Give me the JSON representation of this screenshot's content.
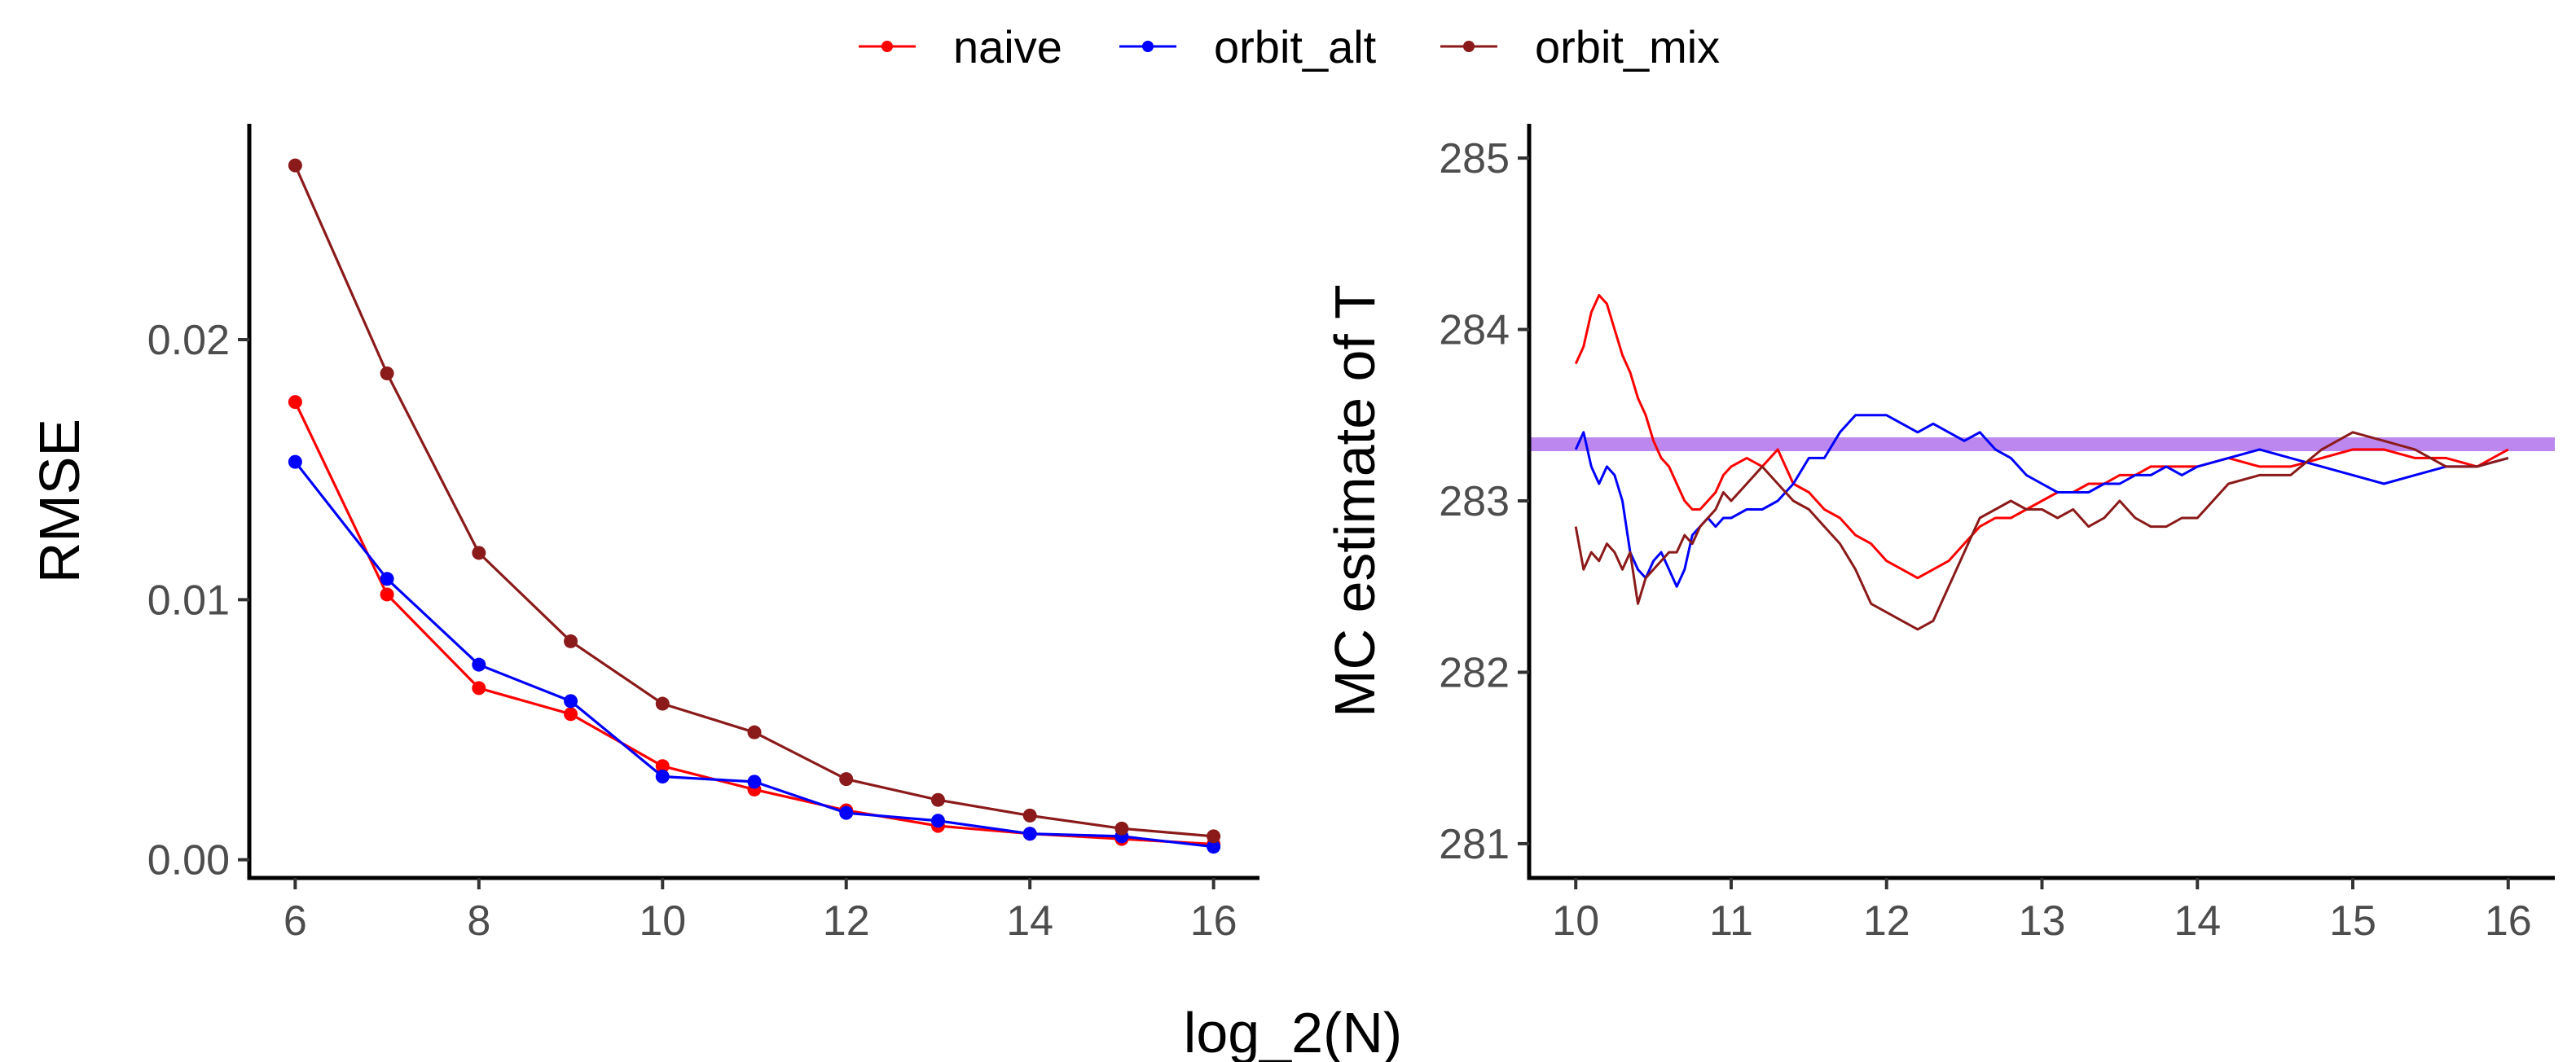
{
  "legend": {
    "entries": [
      {
        "name": "naive",
        "color": "#FF0000"
      },
      {
        "name": "orbit_alt",
        "color": "#0000FF"
      },
      {
        "name": "orbit_mix",
        "color": "#8B1A1A"
      }
    ],
    "placement": "top-center"
  },
  "shared_xlabel": "log_2(N)",
  "reference_line_color": "#B57BEE",
  "chart_data": [
    {
      "type": "line",
      "markers": true,
      "title": "",
      "xlabel": "log_2(N)",
      "ylabel": "RMSE",
      "x": [
        6,
        7,
        8,
        9,
        10,
        11,
        12,
        13,
        14,
        15,
        16
      ],
      "xticks": [
        "6",
        "8",
        "10",
        "12",
        "14",
        "16"
      ],
      "xtick_values": [
        6,
        8,
        10,
        12,
        14,
        16
      ],
      "yticks": [
        "0.00",
        "0.01",
        "0.02"
      ],
      "ytick_values": [
        0,
        0.01,
        0.02
      ],
      "xlim": [
        5.5,
        16.5
      ],
      "ylim": [
        -0.0007,
        0.0283
      ],
      "grid": false,
      "series": [
        {
          "name": "naive",
          "color": "#FF0000",
          "values": [
            0.0176,
            0.0102,
            0.0066,
            0.0056,
            0.0036,
            0.0027,
            0.0019,
            0.0013,
            0.001,
            0.0008,
            0.0006
          ]
        },
        {
          "name": "orbit_alt",
          "color": "#0000FF",
          "values": [
            0.0153,
            0.0108,
            0.0075,
            0.0061,
            0.0032,
            0.003,
            0.0018,
            0.0015,
            0.001,
            0.0009,
            0.0005
          ]
        },
        {
          "name": "orbit_mix",
          "color": "#8B1A1A",
          "values": [
            0.0267,
            0.0187,
            0.0118,
            0.0084,
            0.006,
            0.0049,
            0.0031,
            0.0023,
            0.0017,
            0.0012,
            0.0009
          ]
        }
      ]
    },
    {
      "type": "line",
      "markers": false,
      "title": "",
      "xlabel": "log_2(N)",
      "ylabel": "MC estimate of T",
      "xticks": [
        "10",
        "11",
        "12",
        "13",
        "14",
        "15",
        "16"
      ],
      "xtick_values": [
        10,
        11,
        12,
        13,
        14,
        15,
        16
      ],
      "yticks": [
        "281",
        "282",
        "283",
        "284",
        "285"
      ],
      "ytick_values": [
        281,
        282,
        283,
        284,
        285
      ],
      "xlim": [
        9.7,
        16.3
      ],
      "ylim": [
        280.8,
        285.2
      ],
      "grid": false,
      "reference_line": {
        "y": 283.33,
        "color": "#B57BEE"
      },
      "series": [
        {
          "name": "naive",
          "color": "#FF0000",
          "x": [
            10.0,
            10.05,
            10.1,
            10.15,
            10.2,
            10.25,
            10.3,
            10.35,
            10.4,
            10.45,
            10.5,
            10.55,
            10.6,
            10.65,
            10.7,
            10.75,
            10.8,
            10.85,
            10.9,
            10.95,
            11.0,
            11.1,
            11.2,
            11.3,
            11.4,
            11.5,
            11.6,
            11.7,
            11.8,
            11.9,
            12.0,
            12.1,
            12.2,
            12.3,
            12.4,
            12.5,
            12.6,
            12.7,
            12.8,
            12.9,
            13.0,
            13.1,
            13.2,
            13.3,
            13.4,
            13.5,
            13.6,
            13.7,
            13.8,
            13.9,
            14.0,
            14.2,
            14.4,
            14.6,
            14.8,
            15.0,
            15.2,
            15.4,
            15.6,
            15.8,
            16.0
          ],
          "values": [
            283.8,
            283.9,
            284.1,
            284.2,
            284.15,
            284.0,
            283.85,
            283.75,
            283.6,
            283.5,
            283.35,
            283.25,
            283.2,
            283.1,
            283.0,
            282.95,
            282.95,
            283.0,
            283.05,
            283.15,
            283.2,
            283.25,
            283.2,
            283.3,
            283.1,
            283.05,
            282.95,
            282.9,
            282.8,
            282.75,
            282.65,
            282.6,
            282.55,
            282.6,
            282.65,
            282.75,
            282.85,
            282.9,
            282.9,
            282.95,
            283.0,
            283.05,
            283.05,
            283.1,
            283.1,
            283.15,
            283.15,
            283.2,
            283.2,
            283.2,
            283.2,
            283.25,
            283.2,
            283.2,
            283.25,
            283.3,
            283.3,
            283.25,
            283.25,
            283.2,
            283.3
          ]
        },
        {
          "name": "orbit_alt",
          "color": "#0000FF",
          "x": [
            10.0,
            10.05,
            10.1,
            10.15,
            10.2,
            10.25,
            10.3,
            10.35,
            10.4,
            10.45,
            10.5,
            10.55,
            10.6,
            10.65,
            10.7,
            10.75,
            10.8,
            10.85,
            10.9,
            10.95,
            11.0,
            11.1,
            11.2,
            11.3,
            11.4,
            11.5,
            11.6,
            11.7,
            11.8,
            11.9,
            12.0,
            12.1,
            12.2,
            12.3,
            12.4,
            12.5,
            12.6,
            12.7,
            12.8,
            12.9,
            13.0,
            13.1,
            13.2,
            13.3,
            13.4,
            13.5,
            13.6,
            13.7,
            13.8,
            13.9,
            14.0,
            14.2,
            14.4,
            14.6,
            14.8,
            15.0,
            15.2,
            15.4,
            15.6,
            15.8,
            16.0
          ],
          "values": [
            283.3,
            283.4,
            283.2,
            283.1,
            283.2,
            283.15,
            283.0,
            282.7,
            282.6,
            282.55,
            282.65,
            282.7,
            282.6,
            282.5,
            282.6,
            282.8,
            282.85,
            282.9,
            282.85,
            282.9,
            282.9,
            282.95,
            282.95,
            283.0,
            283.1,
            283.25,
            283.25,
            283.4,
            283.5,
            283.5,
            283.5,
            283.45,
            283.4,
            283.45,
            283.4,
            283.35,
            283.4,
            283.3,
            283.25,
            283.15,
            283.1,
            283.05,
            283.05,
            283.05,
            283.1,
            283.1,
            283.15,
            283.15,
            283.2,
            283.15,
            283.2,
            283.25,
            283.3,
            283.25,
            283.2,
            283.15,
            283.1,
            283.15,
            283.2,
            283.2,
            283.25
          ]
        },
        {
          "name": "orbit_mix",
          "color": "#8B1A1A",
          "x": [
            10.0,
            10.05,
            10.1,
            10.15,
            10.2,
            10.25,
            10.3,
            10.35,
            10.4,
            10.45,
            10.5,
            10.55,
            10.6,
            10.65,
            10.7,
            10.75,
            10.8,
            10.85,
            10.9,
            10.95,
            11.0,
            11.1,
            11.2,
            11.3,
            11.4,
            11.5,
            11.6,
            11.7,
            11.8,
            11.9,
            12.0,
            12.1,
            12.2,
            12.3,
            12.4,
            12.5,
            12.6,
            12.7,
            12.8,
            12.9,
            13.0,
            13.1,
            13.2,
            13.3,
            13.4,
            13.5,
            13.6,
            13.7,
            13.8,
            13.9,
            14.0,
            14.2,
            14.4,
            14.6,
            14.8,
            15.0,
            15.2,
            15.4,
            15.6,
            15.8,
            16.0
          ],
          "values": [
            282.85,
            282.6,
            282.7,
            282.65,
            282.75,
            282.7,
            282.6,
            282.7,
            282.4,
            282.55,
            282.6,
            282.65,
            282.7,
            282.7,
            282.8,
            282.75,
            282.85,
            282.9,
            282.95,
            283.05,
            283.0,
            283.1,
            283.2,
            283.1,
            283.0,
            282.95,
            282.85,
            282.75,
            282.6,
            282.4,
            282.35,
            282.3,
            282.25,
            282.3,
            282.5,
            282.7,
            282.9,
            282.95,
            283.0,
            282.95,
            282.95,
            282.9,
            282.95,
            282.85,
            282.9,
            283.0,
            282.9,
            282.85,
            282.85,
            282.9,
            282.9,
            283.1,
            283.15,
            283.15,
            283.3,
            283.4,
            283.35,
            283.3,
            283.2,
            283.2,
            283.25
          ]
        }
      ]
    }
  ]
}
